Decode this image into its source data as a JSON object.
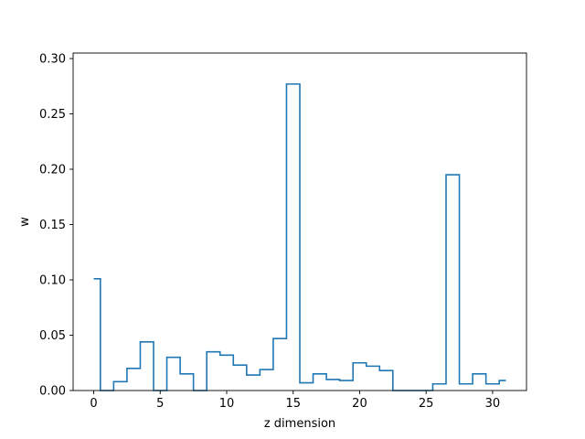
{
  "chart_data": {
    "type": "line",
    "style": "step",
    "xlabel": "z dimension",
    "ylabel": "w",
    "xlim": [
      -1.55,
      32.55
    ],
    "ylim": [
      0.0,
      0.305
    ],
    "xticks": [
      0,
      5,
      10,
      15,
      20,
      25,
      30
    ],
    "yticks": [
      0.0,
      0.05,
      0.1,
      0.15,
      0.2,
      0.25,
      0.3
    ],
    "ytick_labels": [
      "0.00",
      "0.05",
      "0.10",
      "0.15",
      "0.20",
      "0.25",
      "0.30"
    ],
    "grid": false,
    "line_color": "#1f77b4",
    "series": [
      {
        "x": [
          0,
          1,
          2,
          3,
          4,
          5,
          6,
          7,
          8,
          9,
          10,
          11,
          12,
          13,
          14,
          15,
          16,
          17,
          18,
          19,
          20,
          21,
          22,
          23,
          24,
          25,
          26,
          27,
          28,
          29,
          30,
          31
        ],
        "values": [
          0.101,
          0.0,
          0.008,
          0.02,
          0.044,
          0.0,
          0.03,
          0.015,
          0.0,
          0.035,
          0.032,
          0.023,
          0.014,
          0.019,
          0.047,
          0.277,
          0.007,
          0.015,
          0.01,
          0.009,
          0.025,
          0.022,
          0.018,
          0.0,
          0.0,
          0.0,
          0.006,
          0.195,
          0.006,
          0.015,
          0.006,
          0.009
        ]
      }
    ]
  }
}
